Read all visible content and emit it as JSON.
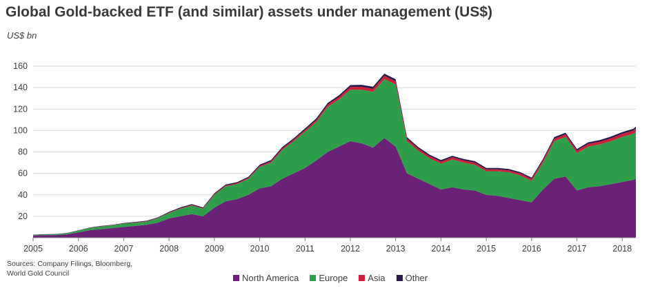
{
  "header": {
    "title": "Global Gold-backed ETF (and similar) assets under management (US$)",
    "unit": "US$ bn"
  },
  "sources": "Sources: Company Filings, Bloomberg, World Gold Council",
  "chart_data": {
    "type": "area",
    "stacked": true,
    "ylim": [
      0,
      160
    ],
    "yticks": [
      20,
      40,
      60,
      80,
      100,
      120,
      140,
      160
    ],
    "xlim": [
      2005.0,
      2018.3
    ],
    "xticks": [
      2005,
      2006,
      2007,
      2008,
      2009,
      2010,
      2011,
      2012,
      2013,
      2014,
      2015,
      2016,
      2017,
      2018
    ],
    "grid": true,
    "legend": "bottom",
    "x": [
      2005.0,
      2005.25,
      2005.5,
      2005.75,
      2006.0,
      2006.25,
      2006.5,
      2006.75,
      2007.0,
      2007.25,
      2007.5,
      2007.75,
      2008.0,
      2008.25,
      2008.5,
      2008.75,
      2009.0,
      2009.25,
      2009.5,
      2009.75,
      2010.0,
      2010.25,
      2010.5,
      2010.75,
      2011.0,
      2011.25,
      2011.5,
      2011.75,
      2012.0,
      2012.25,
      2012.5,
      2012.75,
      2013.0,
      2013.25,
      2013.5,
      2013.75,
      2014.0,
      2014.25,
      2014.5,
      2014.75,
      2015.0,
      2015.25,
      2015.5,
      2015.75,
      2016.0,
      2016.25,
      2016.5,
      2016.75,
      2017.0,
      2017.25,
      2017.5,
      2017.75,
      2018.0,
      2018.25,
      2018.3
    ],
    "series": [
      {
        "name": "North America",
        "color": "#6a2176",
        "values": [
          2,
          2.5,
          2.5,
          3,
          5,
          7,
          8,
          9,
          10,
          11,
          12,
          14,
          18,
          20,
          22,
          20,
          28,
          34,
          36,
          40,
          46,
          48,
          55,
          60,
          65,
          72,
          80,
          85,
          90,
          88,
          84,
          93,
          85,
          60,
          55,
          50,
          45,
          47,
          45,
          44,
          40,
          39,
          37,
          35,
          33,
          45,
          55,
          57,
          44,
          47,
          48,
          50,
          52,
          54,
          55
        ]
      },
      {
        "name": "Europe",
        "color": "#2e9e4a",
        "values": [
          0.5,
          0.5,
          0.7,
          1,
          1.5,
          2,
          2.5,
          2.5,
          3,
          3,
          3,
          4,
          5,
          7,
          8,
          7,
          12,
          14,
          14,
          15,
          20,
          22,
          27,
          30,
          34,
          36,
          42,
          44,
          48,
          50,
          52,
          55,
          58,
          30,
          26,
          24,
          24,
          26,
          25,
          24,
          22,
          23,
          24,
          23,
          20,
          25,
          35,
          37,
          35,
          38,
          39,
          40,
          42,
          43,
          44
        ]
      },
      {
        "name": "Asia",
        "color": "#cc1f3a",
        "values": [
          0,
          0,
          0,
          0,
          0.1,
          0.1,
          0.1,
          0.2,
          0.2,
          0.2,
          0.3,
          0.3,
          0.4,
          0.5,
          0.5,
          0.5,
          0.6,
          0.7,
          0.8,
          0.8,
          1,
          1.2,
          1.3,
          1.4,
          1.5,
          1.7,
          2,
          2.2,
          2.5,
          2.7,
          2.8,
          3,
          2.8,
          2.2,
          2,
          2,
          2,
          2,
          2,
          2,
          1.8,
          1.8,
          1.8,
          1.8,
          1.8,
          2,
          2.3,
          2.4,
          2.3,
          2.5,
          2.5,
          2.7,
          2.9,
          3,
          3
        ]
      },
      {
        "name": "Other",
        "color": "#2a1a4a",
        "values": [
          0.3,
          0.3,
          0.3,
          0.3,
          0.3,
          0.4,
          0.4,
          0.4,
          0.5,
          0.5,
          0.5,
          0.6,
          0.7,
          0.8,
          0.8,
          0.8,
          0.9,
          1,
          1,
          1,
          1.1,
          1.2,
          1.3,
          1.3,
          1.4,
          1.5,
          1.6,
          1.7,
          1.8,
          1.9,
          2,
          2,
          2,
          1.6,
          1.5,
          1.4,
          1.4,
          1.4,
          1.4,
          1.4,
          1.3,
          1.3,
          1.3,
          1.3,
          1.3,
          1.4,
          1.5,
          1.5,
          1.4,
          1.5,
          1.5,
          1.6,
          1.6,
          1.7,
          1.7
        ]
      }
    ]
  }
}
